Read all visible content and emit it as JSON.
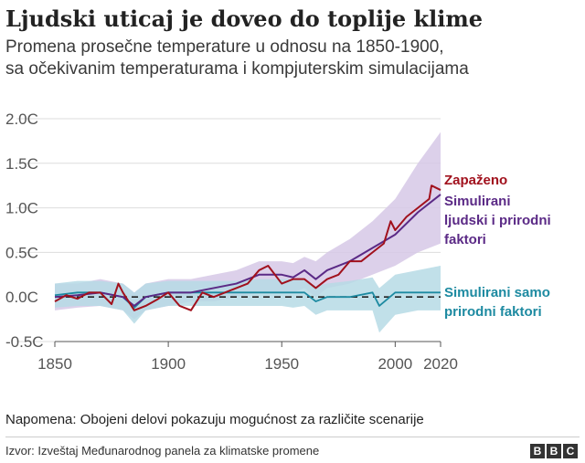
{
  "header": {
    "title": "Ljudski uticaj je doveo do toplije klime",
    "subtitle_line1": "Promena prosečne temperature u odnosu na 1850-1900,",
    "subtitle_line2": "sa očekivanim temperaturama i kompjuterskim simulacijama"
  },
  "footer": {
    "note": "Napomena: Obojeni delovi pokazuju mogućnost za različite scenarije",
    "source": "Izvor: Izveštaj Međunarodnog panela za klimatske promene",
    "logo_letters": [
      "B",
      "B",
      "C"
    ]
  },
  "colors": {
    "observed": "#a1111d",
    "human_natural": "#5b2a86",
    "human_natural_band": "#d6c8e6",
    "natural_only": "#1d8aa1",
    "natural_only_band": "#b6dbe5",
    "grid": "#dddddd",
    "zero_line": "#222222"
  },
  "chart_data": {
    "type": "line",
    "y_tick_labels": [
      "2.0C",
      "1.5C",
      "1.0C",
      "0.5C",
      "0.0C",
      "-0.5C"
    ],
    "y_ticks": [
      2.0,
      1.5,
      1.0,
      0.5,
      0.0,
      -0.5
    ],
    "x_tick_labels": [
      "1850",
      "1900",
      "1950",
      "2000",
      "2020"
    ],
    "x_ticks": [
      1850,
      1900,
      1950,
      2000,
      2020
    ],
    "xlim": [
      1850,
      2020
    ],
    "ylim": [
      -0.5,
      2.0
    ],
    "grid": true,
    "zero_line_dashed": true,
    "series_labels": {
      "observed": "Zapaženo",
      "human_natural": [
        "Simulirani",
        "ljudski i prirodni",
        "faktori"
      ],
      "natural_only": [
        "Simulirani samo",
        "prirodni faktori"
      ]
    },
    "series": [
      {
        "name": "Zapaženo",
        "key": "observed",
        "x": [
          1850,
          1855,
          1860,
          1865,
          1870,
          1875,
          1878,
          1880,
          1885,
          1890,
          1895,
          1900,
          1905,
          1910,
          1915,
          1920,
          1925,
          1930,
          1935,
          1940,
          1944,
          1950,
          1955,
          1960,
          1965,
          1970,
          1975,
          1980,
          1985,
          1990,
          1995,
          1998,
          2000,
          2005,
          2010,
          2015,
          2016,
          2020
        ],
        "y": [
          -0.05,
          0.02,
          -0.02,
          0.05,
          0.05,
          -0.08,
          0.15,
          0.05,
          -0.15,
          -0.1,
          -0.03,
          0.05,
          -0.1,
          -0.15,
          0.05,
          0.0,
          0.05,
          0.1,
          0.15,
          0.3,
          0.35,
          0.15,
          0.2,
          0.2,
          0.1,
          0.2,
          0.25,
          0.4,
          0.4,
          0.5,
          0.6,
          0.85,
          0.75,
          0.9,
          1.0,
          1.1,
          1.25,
          1.2
        ]
      },
      {
        "name": "Simulirani ljudski i prirodni faktori",
        "key": "human_natural",
        "x": [
          1850,
          1860,
          1870,
          1880,
          1885,
          1890,
          1900,
          1910,
          1920,
          1930,
          1940,
          1950,
          1955,
          1960,
          1965,
          1970,
          1980,
          1990,
          2000,
          2010,
          2020
        ],
        "y": [
          0.0,
          0.02,
          0.05,
          0.0,
          -0.1,
          0.0,
          0.05,
          0.05,
          0.1,
          0.15,
          0.25,
          0.25,
          0.22,
          0.3,
          0.2,
          0.3,
          0.4,
          0.55,
          0.7,
          0.95,
          1.15
        ],
        "low": [
          -0.15,
          -0.12,
          -0.1,
          -0.15,
          -0.25,
          -0.15,
          -0.1,
          -0.05,
          -0.05,
          0.0,
          0.05,
          0.05,
          0.05,
          0.1,
          0.0,
          0.1,
          0.15,
          0.25,
          0.35,
          0.5,
          0.6
        ],
        "high": [
          0.15,
          0.15,
          0.2,
          0.15,
          0.05,
          0.15,
          0.2,
          0.2,
          0.25,
          0.3,
          0.4,
          0.4,
          0.38,
          0.45,
          0.4,
          0.5,
          0.65,
          0.85,
          1.1,
          1.5,
          1.85
        ]
      },
      {
        "name": "Simulirani samo prirodni faktori",
        "key": "natural_only",
        "x": [
          1850,
          1860,
          1870,
          1880,
          1885,
          1890,
          1900,
          1910,
          1920,
          1930,
          1940,
          1950,
          1955,
          1960,
          1965,
          1970,
          1980,
          1990,
          1993,
          2000,
          2010,
          2020
        ],
        "y": [
          0.02,
          0.05,
          0.05,
          0.0,
          -0.12,
          0.0,
          0.05,
          0.05,
          0.05,
          0.05,
          0.05,
          0.05,
          0.05,
          0.05,
          -0.05,
          0.0,
          0.0,
          0.05,
          -0.1,
          0.05,
          0.05,
          0.05
        ],
        "low": [
          -0.12,
          -0.1,
          -0.1,
          -0.15,
          -0.3,
          -0.15,
          -0.1,
          -0.1,
          -0.1,
          -0.1,
          -0.1,
          -0.1,
          -0.12,
          -0.1,
          -0.2,
          -0.15,
          -0.15,
          -0.15,
          -0.4,
          -0.2,
          -0.15,
          -0.15
        ],
        "high": [
          0.15,
          0.18,
          0.18,
          0.15,
          0.05,
          0.15,
          0.18,
          0.18,
          0.18,
          0.18,
          0.2,
          0.2,
          0.2,
          0.2,
          0.12,
          0.15,
          0.18,
          0.22,
          0.1,
          0.25,
          0.3,
          0.35
        ]
      }
    ]
  }
}
